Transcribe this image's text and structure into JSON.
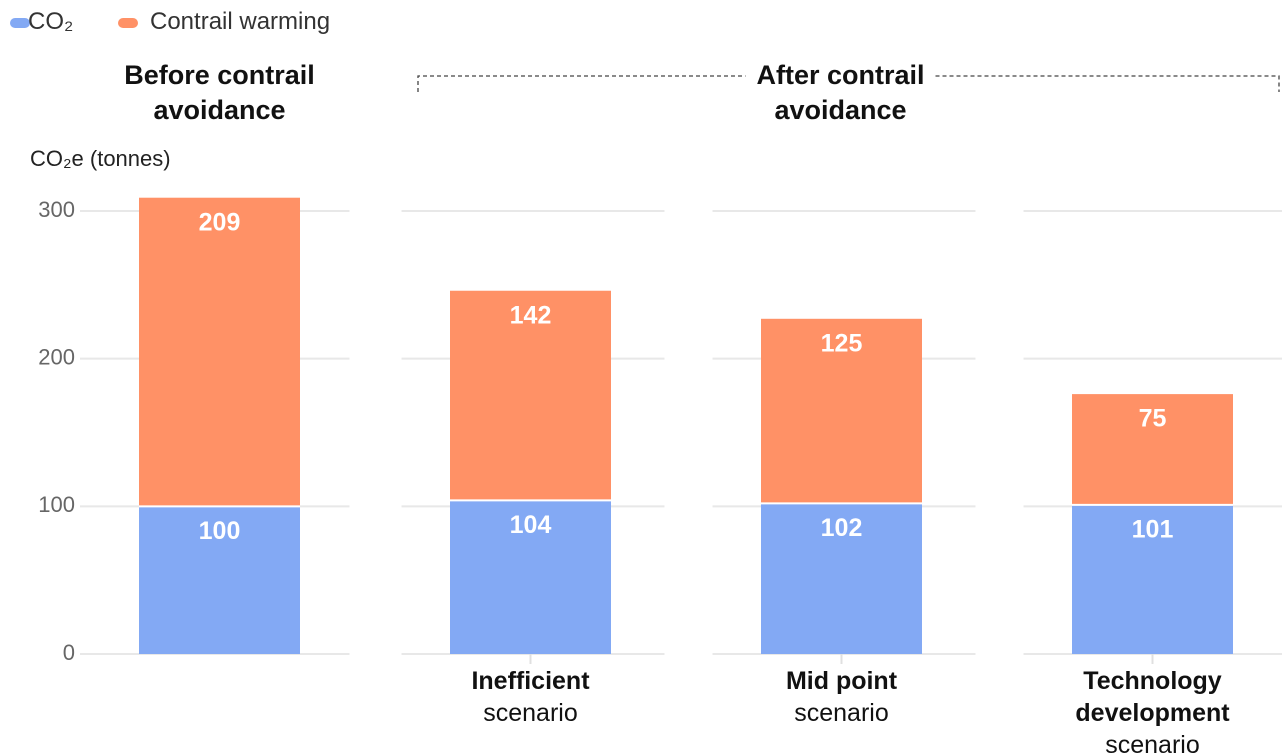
{
  "chart_data": {
    "type": "stacked_bar",
    "legend": "top-left",
    "y_label": "CO₂e (tonnes)",
    "group_labels": [
      "Before contrail avoidance",
      "After contrail avoidance"
    ],
    "categories": [
      null,
      {
        "bold": "Inefficient",
        "text": "scenario"
      },
      {
        "bold": "Mid point",
        "text": "scenario"
      },
      {
        "bold": "Technology development",
        "text": "scenario"
      }
    ],
    "series": [
      {
        "name": "CO₂",
        "color": "#83a9f4",
        "values": [
          100,
          104,
          102,
          101
        ]
      },
      {
        "name": "Contrail warming",
        "color": "#ff9166",
        "values": [
          209,
          142,
          125,
          75
        ]
      }
    ],
    "ylim": [
      0,
      300
    ],
    "yticks": [
      0,
      100,
      200,
      300
    ],
    "grid": true
  }
}
